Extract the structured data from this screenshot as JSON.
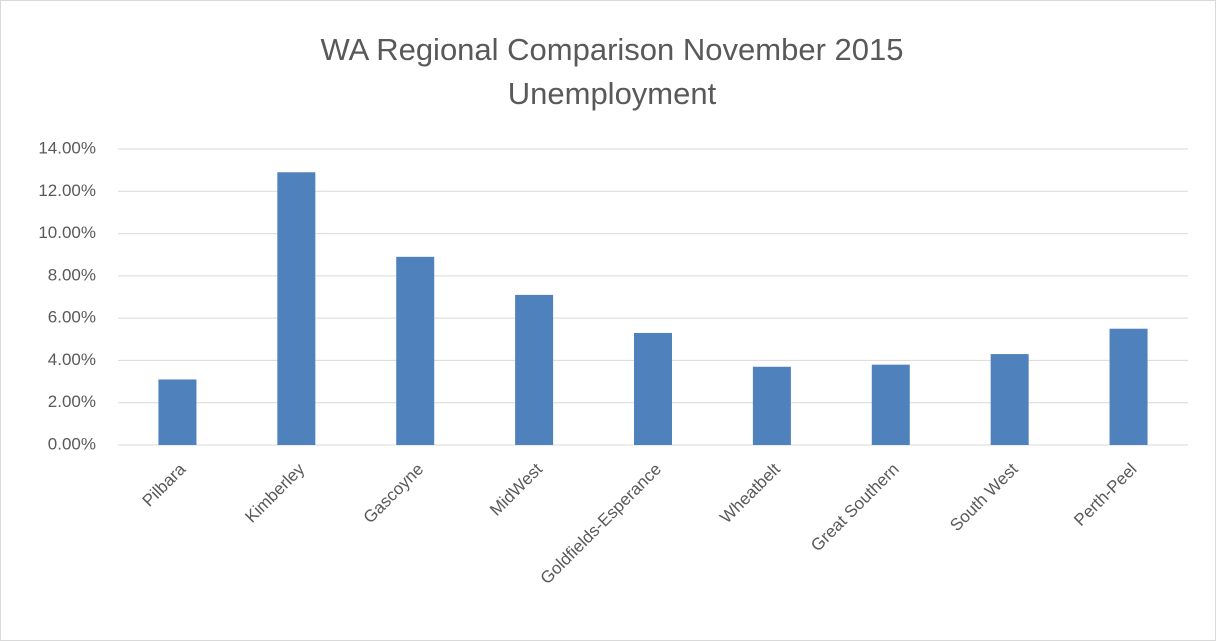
{
  "chart_data": {
    "type": "bar",
    "title": [
      "WA Regional Comparison November 2015",
      "Unemployment"
    ],
    "categories": [
      "Pilbara",
      "Kimberley",
      "Gascoyne",
      "MidWest",
      "Goldfields-Esperance",
      "Wheatbelt",
      "Great Southern",
      "South West",
      "Perth-Peel"
    ],
    "values": [
      3.1,
      12.9,
      8.9,
      7.1,
      5.3,
      3.7,
      3.8,
      4.3,
      5.5
    ],
    "color": "#4f81bd",
    "ylim": [
      0,
      14
    ],
    "yticks": [
      {
        "value": 0,
        "label": "0.00%"
      },
      {
        "value": 2,
        "label": "2.00%"
      },
      {
        "value": 4,
        "label": "4.00%"
      },
      {
        "value": 6,
        "label": "6.00%"
      },
      {
        "value": 8,
        "label": "8.00%"
      },
      {
        "value": 10,
        "label": "10.00%"
      },
      {
        "value": 12,
        "label": "12.00%"
      },
      {
        "value": 14,
        "label": "14.00%"
      }
    ],
    "grid": true
  }
}
